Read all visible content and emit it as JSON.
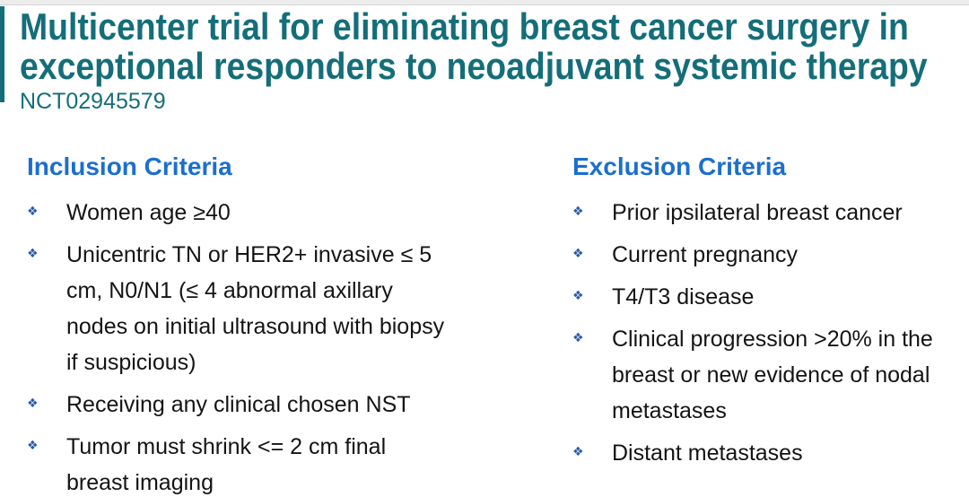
{
  "slide": {
    "title_line1": "Multicenter trial for eliminating breast cancer surgery in",
    "title_line2": "exceptional responders to neoadjuvant systemic therapy",
    "trial_id": "NCT02945579"
  },
  "bullet_glyph": "❖",
  "colors": {
    "title_teal": "#146E79",
    "heading_blue": "#1B6FCE",
    "bullet_blue": "#2A5BA8",
    "body_text": "#141414",
    "top_strip": "#ECECEC"
  },
  "inclusion": {
    "heading": "Inclusion Criteria",
    "items": [
      "Women age ≥40",
      "Unicentric TN or HER2+ invasive ≤ 5\ncm, N0/N1 (≤ 4 abnormal axillary\nnodes on initial ultrasound with biopsy\nif suspicious)",
      "Receiving any clinical chosen NST",
      "Tumor must shrink <= 2 cm final\nbreast imaging"
    ]
  },
  "exclusion": {
    "heading": "Exclusion Criteria",
    "items": [
      "Prior ipsilateral breast cancer",
      "Current pregnancy",
      "T4/T3 disease",
      "Clinical progression >20% in the\nbreast or new evidence of nodal\nmetastases",
      "Distant metastases"
    ]
  }
}
